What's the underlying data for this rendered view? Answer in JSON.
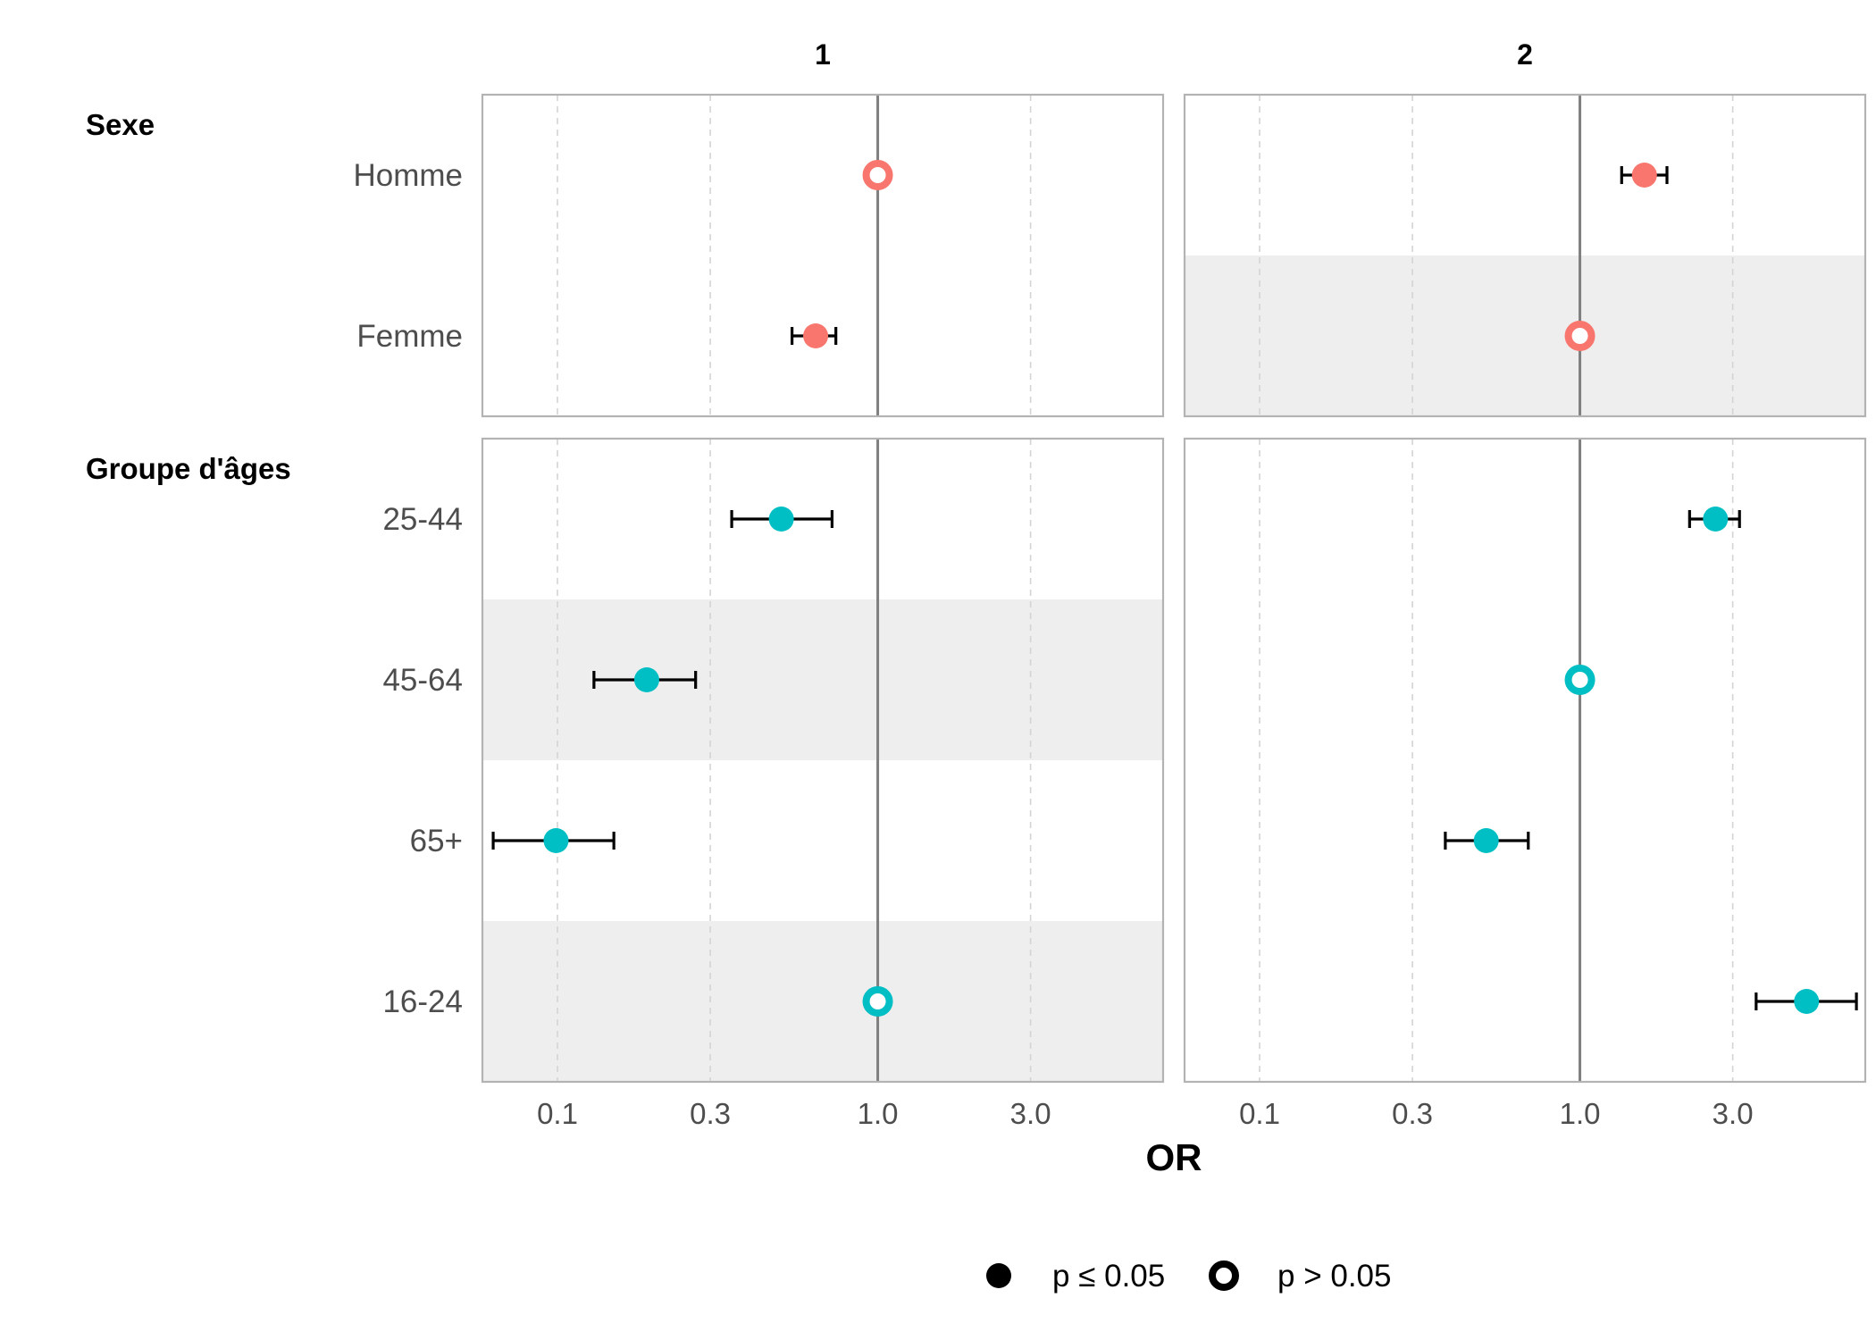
{
  "chart_data": {
    "type": "scatter",
    "subtype": "faceted forest plot (odds ratios with 95% CI error bars)",
    "xlabel": "OR",
    "x_scale": "log10",
    "x_ticks": [
      0.1,
      0.3,
      1.0,
      3.0
    ],
    "x_tick_labels": [
      "0.1",
      "0.3",
      "1.0",
      "3.0"
    ],
    "xlim": [
      0.0583,
      7.78
    ],
    "reference_line": 1.0,
    "grid": "vertical dashed at ticks",
    "legend_position": "bottom",
    "legend": [
      {
        "symbol": "filled",
        "label": "p ≤ 0.05"
      },
      {
        "symbol": "hollow",
        "label": "p > 0.05"
      }
    ],
    "facet_columns": [
      "1",
      "2"
    ],
    "groups": [
      {
        "label": "Sexe",
        "color": "#F8766D",
        "rows": [
          "Homme",
          "Femme"
        ],
        "points": {
          "1": [
            {
              "row": "Homme",
              "or": 1.0,
              "low": null,
              "high": null,
              "sig": false
            },
            {
              "row": "Femme",
              "or": 0.64,
              "low": 0.54,
              "high": 0.74,
              "sig": true
            }
          ],
          "2": [
            {
              "row": "Homme",
              "or": 1.59,
              "low": 1.35,
              "high": 1.87,
              "sig": true
            },
            {
              "row": "Femme",
              "or": 1.0,
              "low": null,
              "high": null,
              "sig": false
            }
          ]
        },
        "shaded_rows": {
          "1": [],
          "2": [
            "Femme"
          ]
        }
      },
      {
        "label": "Groupe d'âges",
        "color": "#00BFC4",
        "rows": [
          "25-44",
          "45-64",
          "65+",
          "16-24"
        ],
        "points": {
          "1": [
            {
              "row": "25-44",
              "or": 0.5,
              "low": 0.35,
              "high": 0.72,
              "sig": true
            },
            {
              "row": "45-64",
              "or": 0.19,
              "low": 0.13,
              "high": 0.27,
              "sig": true
            },
            {
              "row": "65+",
              "or": 0.099,
              "low": 0.063,
              "high": 0.15,
              "sig": true
            },
            {
              "row": "16-24",
              "or": 1.0,
              "low": null,
              "high": null,
              "sig": false
            }
          ],
          "2": [
            {
              "row": "25-44",
              "or": 2.65,
              "low": 2.2,
              "high": 3.15,
              "sig": true
            },
            {
              "row": "45-64",
              "or": 1.0,
              "low": null,
              "high": null,
              "sig": false
            },
            {
              "row": "65+",
              "or": 0.51,
              "low": 0.38,
              "high": 0.69,
              "sig": true
            },
            {
              "row": "16-24",
              "or": 5.1,
              "low": 3.55,
              "high": 7.3,
              "sig": true
            }
          ]
        },
        "shaded_rows": {
          "1": [
            "45-64",
            "16-24"
          ],
          "2": []
        }
      }
    ]
  }
}
